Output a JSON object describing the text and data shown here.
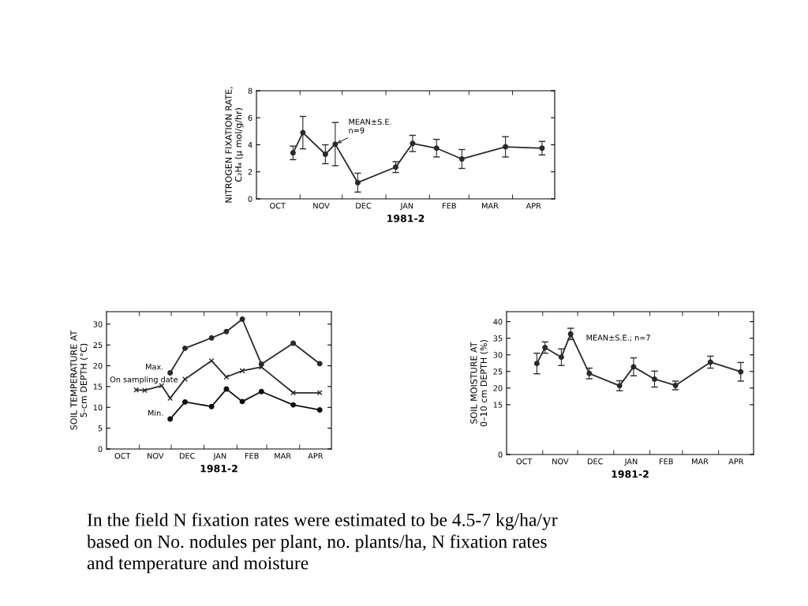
{
  "chart_data": [
    {
      "type": "line",
      "xlabel": "1981-2",
      "ylabel": "NITROGEN FIXATION RATE,\nC₂H₄ (µ mol/g/hr)",
      "xlim": [
        "1981-10-01",
        "1982-05-01"
      ],
      "ylim": [
        0,
        8
      ],
      "xticks": [
        {
          "value": "1981-10-16",
          "label": "OCT"
        },
        {
          "value": "1981-11-01",
          "label": null
        },
        {
          "value": "1981-11-16",
          "label": "NOV"
        },
        {
          "value": "1981-12-01",
          "label": null
        },
        {
          "value": "1981-12-16",
          "label": "DEC"
        },
        {
          "value": "1982-01-01",
          "label": null
        },
        {
          "value": "1982-01-16",
          "label": "JAN"
        },
        {
          "value": "1982-02-01",
          "label": null
        },
        {
          "value": "1982-02-15",
          "label": "FEB"
        },
        {
          "value": "1982-03-01",
          "label": null
        },
        {
          "value": "1982-03-16",
          "label": "MAR"
        },
        {
          "value": "1982-04-01",
          "label": null
        },
        {
          "value": "1982-04-16",
          "label": "APR"
        }
      ],
      "yticks": [
        0,
        2,
        4,
        6,
        8
      ],
      "grid": false,
      "series": [
        {
          "color": "#2a2a2a",
          "marker": "circle",
          "x": [
            "1981-10-27",
            "1981-11-03",
            "1981-11-19",
            "1981-11-26",
            "1981-12-12",
            "1982-01-08",
            "1982-01-20",
            "1982-02-06",
            "1982-02-24",
            "1982-03-27",
            "1982-04-22"
          ],
          "values": [
            3.4,
            4.9,
            3.3,
            4.05,
            1.2,
            2.35,
            4.1,
            3.75,
            2.95,
            3.85,
            3.75
          ],
          "errors": [
            0.5,
            1.2,
            0.7,
            1.6,
            0.7,
            0.4,
            0.6,
            0.65,
            0.7,
            0.75,
            0.5
          ]
        }
      ],
      "annotations": [
        {
          "text": "MEAN±S.E.\nn=9",
          "x": "1981-11-26",
          "y": 4.05
        }
      ]
    },
    {
      "type": "line",
      "xlabel": "1981-2",
      "ylabel": "SOIL TEMPERATURE AT\n5-cm DEPTH (°C)",
      "xlim": [
        "1981-10-01",
        "1982-05-01"
      ],
      "ylim": [
        0,
        33
      ],
      "xticks": [
        {
          "value": "1981-10-16",
          "label": "OCT"
        },
        {
          "value": "1981-11-01",
          "label": null
        },
        {
          "value": "1981-11-16",
          "label": "NOV"
        },
        {
          "value": "1981-12-01",
          "label": null
        },
        {
          "value": "1981-12-16",
          "label": "DEC"
        },
        {
          "value": "1982-01-01",
          "label": null
        },
        {
          "value": "1982-01-16",
          "label": "JAN"
        },
        {
          "value": "1982-02-01",
          "label": null
        },
        {
          "value": "1982-02-15",
          "label": "FEB"
        },
        {
          "value": "1982-03-01",
          "label": null
        },
        {
          "value": "1982-03-16",
          "label": "MAR"
        },
        {
          "value": "1982-04-01",
          "label": null
        },
        {
          "value": "1982-04-16",
          "label": "APR"
        }
      ],
      "yticks": [
        0,
        5,
        10,
        15,
        20,
        25,
        30
      ],
      "grid": false,
      "series": [
        {
          "name": "Max.",
          "color": "#2a2a2a",
          "marker": "circle",
          "x": [
            "1981-11-30",
            "1981-12-14",
            "1982-01-08",
            "1982-01-22",
            "1982-02-06",
            "1982-02-24",
            "1982-03-26",
            "1982-04-20"
          ],
          "values": [
            18.3,
            24.2,
            26.7,
            28.2,
            31.2,
            20.4,
            25.4,
            20.5
          ]
        },
        {
          "name": "On sampling date",
          "color": "#2a2a2a",
          "marker": "cross",
          "x": [
            "1981-10-29",
            "1981-11-06",
            "1981-11-22",
            "1981-11-30",
            "1981-12-14",
            "1982-01-08",
            "1982-01-22",
            "1982-02-06",
            "1982-02-24",
            "1982-03-26",
            "1982-04-20"
          ],
          "values": [
            14.2,
            14.1,
            15.2,
            12.2,
            16.8,
            21.2,
            17.3,
            18.8,
            19.7,
            13.5,
            13.5
          ]
        },
        {
          "name": "Min.",
          "color": "#111111",
          "marker": "circle",
          "x": [
            "1981-11-30",
            "1981-12-14",
            "1982-01-08",
            "1982-01-22",
            "1982-02-06",
            "1982-02-24",
            "1982-03-26",
            "1982-04-20"
          ],
          "values": [
            7.2,
            11.3,
            10.2,
            14.4,
            11.4,
            13.8,
            10.6,
            9.4
          ]
        }
      ]
    },
    {
      "type": "line",
      "xlabel": "1981-2",
      "ylabel": "SOIL MOISTURE AT\n0–10 cm DEPTH (%)",
      "xlim": [
        "1981-10-01",
        "1982-05-01"
      ],
      "ylim": [
        0,
        43
      ],
      "xticks": [
        {
          "value": "1981-10-16",
          "label": "OCT"
        },
        {
          "value": "1981-11-01",
          "label": null
        },
        {
          "value": "1981-11-16",
          "label": "NOV"
        },
        {
          "value": "1981-12-01",
          "label": null
        },
        {
          "value": "1981-12-16",
          "label": "DEC"
        },
        {
          "value": "1982-01-01",
          "label": null
        },
        {
          "value": "1982-01-16",
          "label": "JAN"
        },
        {
          "value": "1982-02-01",
          "label": null
        },
        {
          "value": "1982-02-15",
          "label": "FEB"
        },
        {
          "value": "1982-03-01",
          "label": null
        },
        {
          "value": "1982-03-16",
          "label": "MAR"
        },
        {
          "value": "1982-04-01",
          "label": null
        },
        {
          "value": "1982-04-16",
          "label": "APR"
        }
      ],
      "yticks": [
        0,
        15,
        20,
        25,
        30,
        35,
        40
      ],
      "grid": false,
      "series": [
        {
          "color": "#2a2a2a",
          "marker": "circle",
          "x": [
            "1981-10-27",
            "1981-11-03",
            "1981-11-17",
            "1981-11-25",
            "1981-12-11",
            "1982-01-06",
            "1982-01-18",
            "1982-02-05",
            "1982-02-23",
            "1982-03-25",
            "1982-04-20"
          ],
          "values": [
            27.4,
            32.2,
            29.3,
            36.3,
            24.4,
            20.7,
            26.4,
            22.7,
            20.8,
            27.8,
            24.9
          ],
          "errors": [
            3.1,
            1.7,
            2.5,
            1.7,
            1.6,
            1.5,
            2.7,
            2.4,
            1.3,
            1.8,
            2.8
          ]
        }
      ],
      "annotations": [
        "MEAN±S.E.; n=7",
        "In the field N fixation rates were estimated to be 4.5-7 kg/ha/yr\nbased on No. nodules per plant, no. plants/ha, N fixation rates\nand temperature and moisture"
      ]
    }
  ]
}
